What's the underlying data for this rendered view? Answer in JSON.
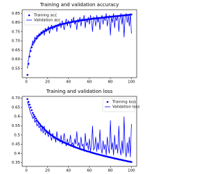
{
  "chart_data": [
    {
      "type": "line",
      "title": "Training and validation accuracy",
      "x": [
        1,
        2,
        3,
        4,
        5,
        6,
        7,
        8,
        9,
        10,
        11,
        12,
        13,
        14,
        15,
        16,
        17,
        18,
        19,
        20,
        21,
        22,
        23,
        24,
        25,
        26,
        27,
        28,
        29,
        30,
        31,
        32,
        33,
        34,
        35,
        36,
        37,
        38,
        39,
        40,
        41,
        42,
        43,
        44,
        45,
        46,
        47,
        48,
        49,
        50,
        51,
        52,
        53,
        54,
        55,
        56,
        57,
        58,
        59,
        60,
        61,
        62,
        63,
        64,
        65,
        66,
        67,
        68,
        69,
        70,
        71,
        72,
        73,
        74,
        75,
        76,
        77,
        78,
        79,
        80,
        81,
        82,
        83,
        84,
        85,
        86,
        87,
        88,
        89,
        90,
        91,
        92,
        93,
        94,
        95,
        96,
        97,
        98,
        99,
        100
      ],
      "series": [
        {
          "name": "Training acc",
          "color": "#0000ff",
          "mode": "markers",
          "values": [
            0.515,
            0.575,
            0.615,
            0.645,
            0.665,
            0.68,
            0.69,
            0.7,
            0.71,
            0.715,
            0.725,
            0.73,
            0.735,
            0.74,
            0.745,
            0.75,
            0.752,
            0.756,
            0.76,
            0.762,
            0.765,
            0.768,
            0.77,
            0.772,
            0.775,
            0.777,
            0.779,
            0.781,
            0.783,
            0.785,
            0.787,
            0.788,
            0.79,
            0.791,
            0.793,
            0.794,
            0.795,
            0.797,
            0.798,
            0.799,
            0.8,
            0.801,
            0.803,
            0.804,
            0.805,
            0.806,
            0.807,
            0.808,
            0.809,
            0.81,
            0.811,
            0.812,
            0.813,
            0.813,
            0.814,
            0.815,
            0.816,
            0.817,
            0.818,
            0.818,
            0.819,
            0.82,
            0.821,
            0.821,
            0.822,
            0.823,
            0.823,
            0.824,
            0.825,
            0.825,
            0.826,
            0.827,
            0.827,
            0.828,
            0.829,
            0.829,
            0.83,
            0.83,
            0.831,
            0.832,
            0.832,
            0.833,
            0.833,
            0.834,
            0.835,
            0.835,
            0.836,
            0.836,
            0.837,
            0.838,
            0.838,
            0.839,
            0.839,
            0.84,
            0.84,
            0.841,
            0.842,
            0.842,
            0.843,
            0.844
          ]
        },
        {
          "name": "Validation acc",
          "color": "#0000ff",
          "mode": "lines",
          "values": [
            0.55,
            0.6,
            0.63,
            0.66,
            0.67,
            0.7,
            0.69,
            0.72,
            0.71,
            0.73,
            0.72,
            0.74,
            0.73,
            0.75,
            0.74,
            0.76,
            0.73,
            0.77,
            0.75,
            0.76,
            0.78,
            0.74,
            0.77,
            0.79,
            0.76,
            0.78,
            0.77,
            0.8,
            0.75,
            0.79,
            0.78,
            0.8,
            0.77,
            0.81,
            0.79,
            0.76,
            0.8,
            0.82,
            0.78,
            0.81,
            0.8,
            0.77,
            0.82,
            0.8,
            0.83,
            0.79,
            0.81,
            0.76,
            0.82,
            0.8,
            0.83,
            0.78,
            0.82,
            0.81,
            0.84,
            0.77,
            0.82,
            0.8,
            0.83,
            0.79,
            0.84,
            0.81,
            0.75,
            0.83,
            0.82,
            0.78,
            0.84,
            0.8,
            0.83,
            0.76,
            0.82,
            0.84,
            0.79,
            0.83,
            0.81,
            0.85,
            0.78,
            0.82,
            0.84,
            0.73,
            0.83,
            0.8,
            0.85,
            0.77,
            0.83,
            0.81,
            0.84,
            0.75,
            0.82,
            0.85,
            0.79,
            0.84,
            0.72,
            0.83,
            0.85,
            0.8,
            0.84,
            0.78,
            0.85,
            0.74
          ]
        }
      ],
      "xlim": [
        -4,
        105
      ],
      "xticks": [
        0,
        20,
        40,
        60,
        80,
        100
      ],
      "ylim": [
        0.5,
        0.87
      ],
      "yticks": [
        {
          "value": 0.55,
          "label": "0.55"
        },
        {
          "value": 0.6,
          "label": "0.60"
        },
        {
          "value": 0.65,
          "label": "0.65"
        },
        {
          "value": 0.7,
          "label": "0.70"
        },
        {
          "value": 0.75,
          "label": "0.75"
        },
        {
          "value": 0.8,
          "label": "0.80"
        },
        {
          "value": 0.85,
          "label": "0.85"
        }
      ],
      "legend": "upper-left"
    },
    {
      "type": "line",
      "title": "Training and validation loss",
      "x": [
        1,
        2,
        3,
        4,
        5,
        6,
        7,
        8,
        9,
        10,
        11,
        12,
        13,
        14,
        15,
        16,
        17,
        18,
        19,
        20,
        21,
        22,
        23,
        24,
        25,
        26,
        27,
        28,
        29,
        30,
        31,
        32,
        33,
        34,
        35,
        36,
        37,
        38,
        39,
        40,
        41,
        42,
        43,
        44,
        45,
        46,
        47,
        48,
        49,
        50,
        51,
        52,
        53,
        54,
        55,
        56,
        57,
        58,
        59,
        60,
        61,
        62,
        63,
        64,
        65,
        66,
        67,
        68,
        69,
        70,
        71,
        72,
        73,
        74,
        75,
        76,
        77,
        78,
        79,
        80,
        81,
        82,
        83,
        84,
        85,
        86,
        87,
        88,
        89,
        90,
        91,
        92,
        93,
        94,
        95,
        96,
        97,
        98,
        99,
        100
      ],
      "series": [
        {
          "name": "Training loss",
          "color": "#0000ff",
          "mode": "markers",
          "values": [
            0.695,
            0.68,
            0.665,
            0.65,
            0.635,
            0.62,
            0.61,
            0.6,
            0.59,
            0.58,
            0.572,
            0.565,
            0.558,
            0.55,
            0.545,
            0.54,
            0.533,
            0.527,
            0.522,
            0.517,
            0.512,
            0.508,
            0.503,
            0.499,
            0.495,
            0.491,
            0.487,
            0.484,
            0.48,
            0.477,
            0.474,
            0.471,
            0.468,
            0.465,
            0.462,
            0.459,
            0.457,
            0.454,
            0.452,
            0.449,
            0.447,
            0.444,
            0.442,
            0.44,
            0.438,
            0.436,
            0.433,
            0.431,
            0.429,
            0.427,
            0.425,
            0.423,
            0.421,
            0.42,
            0.418,
            0.416,
            0.414,
            0.412,
            0.411,
            0.409,
            0.407,
            0.405,
            0.404,
            0.402,
            0.4,
            0.399,
            0.397,
            0.396,
            0.394,
            0.393,
            0.391,
            0.39,
            0.388,
            0.387,
            0.385,
            0.384,
            0.383,
            0.381,
            0.38,
            0.379,
            0.377,
            0.376,
            0.375,
            0.373,
            0.372,
            0.371,
            0.37,
            0.368,
            0.367,
            0.366,
            0.365,
            0.363,
            0.362,
            0.361,
            0.36,
            0.358,
            0.357,
            0.356,
            0.355,
            0.354
          ]
        },
        {
          "name": "Validation loss",
          "color": "#0000ff",
          "mode": "lines",
          "values": [
            0.68,
            0.66,
            0.64,
            0.62,
            0.61,
            0.59,
            0.6,
            0.57,
            0.58,
            0.55,
            0.56,
            0.54,
            0.55,
            0.52,
            0.54,
            0.51,
            0.55,
            0.5,
            0.52,
            0.51,
            0.49,
            0.53,
            0.49,
            0.47,
            0.51,
            0.48,
            0.49,
            0.46,
            0.52,
            0.47,
            0.48,
            0.46,
            0.5,
            0.45,
            0.47,
            0.51,
            0.46,
            0.44,
            0.48,
            0.45,
            0.46,
            0.5,
            0.44,
            0.46,
            0.43,
            0.48,
            0.45,
            0.52,
            0.44,
            0.46,
            0.42,
            0.49,
            0.44,
            0.45,
            0.41,
            0.51,
            0.44,
            0.46,
            0.42,
            0.48,
            0.41,
            0.45,
            0.55,
            0.42,
            0.43,
            0.49,
            0.41,
            0.46,
            0.42,
            0.53,
            0.43,
            0.4,
            0.47,
            0.42,
            0.45,
            0.39,
            0.49,
            0.43,
            0.4,
            0.58,
            0.42,
            0.46,
            0.39,
            0.5,
            0.42,
            0.45,
            0.4,
            0.55,
            0.43,
            0.39,
            0.47,
            0.4,
            0.6,
            0.42,
            0.38,
            0.46,
            0.4,
            0.49,
            0.38,
            0.56
          ]
        }
      ],
      "xlim": [
        -4,
        105
      ],
      "xticks": [
        0,
        20,
        40,
        60,
        80,
        100
      ],
      "ylim": [
        0.33,
        0.71
      ],
      "yticks": [
        0.35,
        0.4,
        0.45,
        0.5,
        0.55,
        0.6,
        0.65,
        {
          "value": 0.7,
          "label": "0.70"
        }
      ],
      "legend": "upper-right"
    }
  ]
}
